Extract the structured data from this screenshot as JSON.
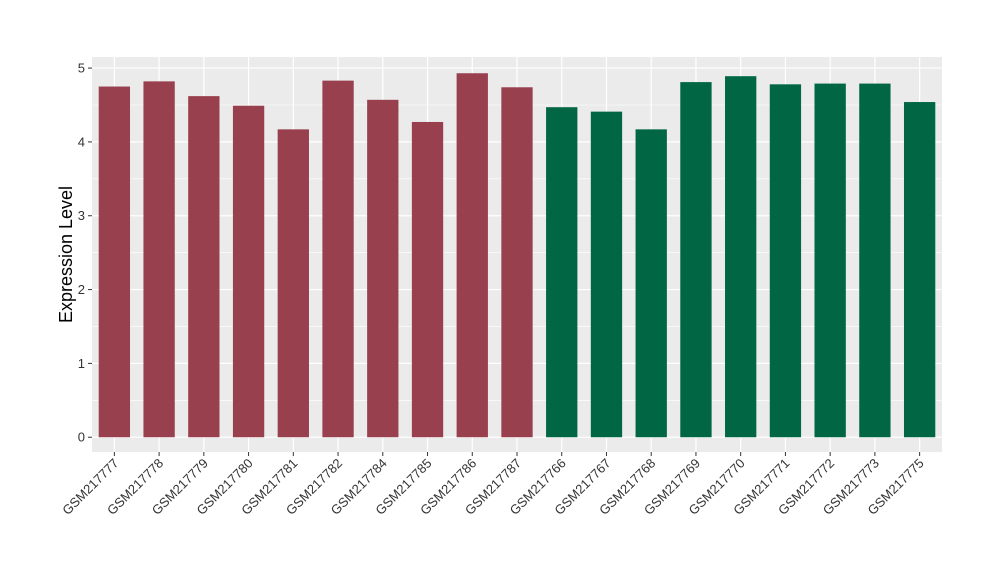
{
  "chart_data": {
    "type": "bar",
    "title": "",
    "xlabel": "",
    "ylabel": "Expression Level",
    "ylim": [
      -0.2,
      5.15
    ],
    "yticks": [
      0,
      1,
      2,
      3,
      4,
      5
    ],
    "grid": true,
    "categories": [
      "GSM217777",
      "GSM217778",
      "GSM217779",
      "GSM217780",
      "GSM217781",
      "GSM217782",
      "GSM217784",
      "GSM217785",
      "GSM217786",
      "GSM217787",
      "GSM217766",
      "GSM217767",
      "GSM217768",
      "GSM217769",
      "GSM217770",
      "GSM217771",
      "GSM217772",
      "GSM217773",
      "GSM217775"
    ],
    "values": [
      4.75,
      4.82,
      4.62,
      4.49,
      4.17,
      4.83,
      4.57,
      4.27,
      4.93,
      4.74,
      4.47,
      4.41,
      4.17,
      4.81,
      4.89,
      4.78,
      4.79,
      4.79,
      4.54
    ],
    "groups": [
      "a",
      "a",
      "a",
      "a",
      "a",
      "a",
      "a",
      "a",
      "a",
      "a",
      "b",
      "b",
      "b",
      "b",
      "b",
      "b",
      "b",
      "b",
      "b"
    ],
    "colors": {
      "a": "#99404e",
      "b": "#006644"
    },
    "panel_background": "#ebebeb",
    "grid_color": "#ffffff"
  }
}
